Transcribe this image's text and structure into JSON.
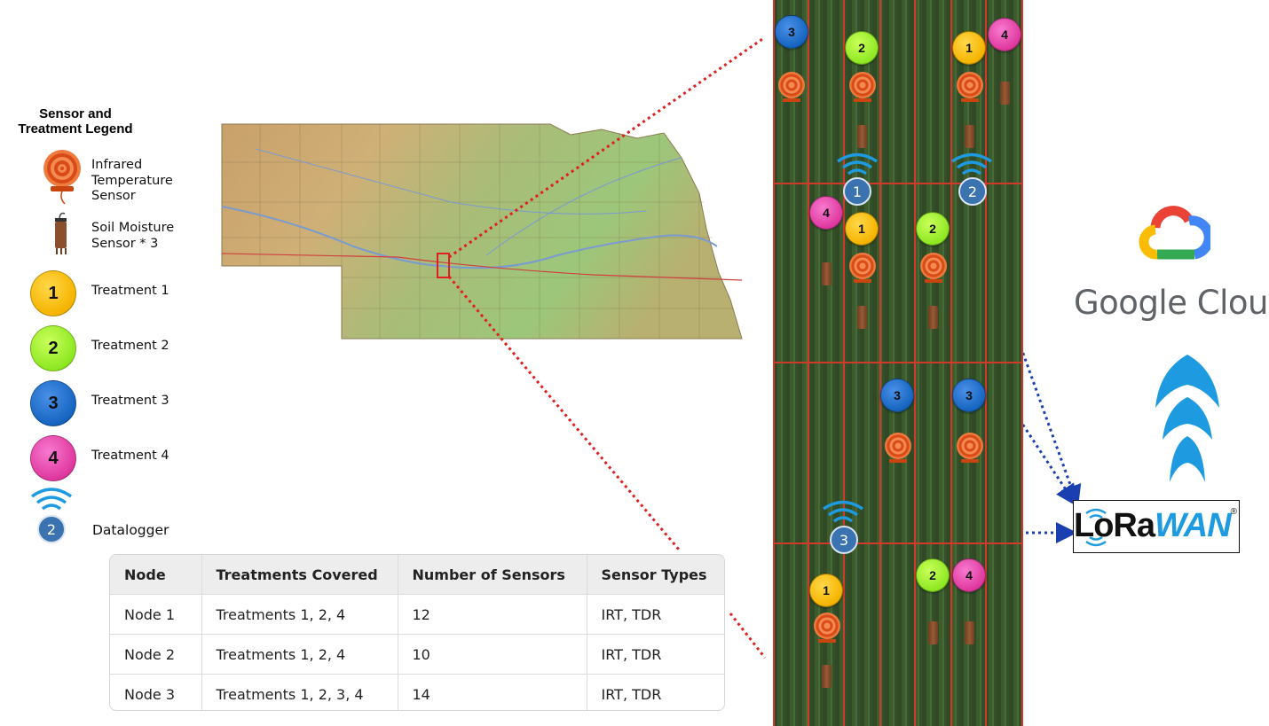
{
  "legend": {
    "title_line1": "Sensor and",
    "title_line2": "Treatment Legend",
    "irt_line1": "Infrared",
    "irt_line2": "Temperature",
    "irt_line3": "Sensor",
    "soil_line1": "Soil Moisture",
    "soil_line2": "Sensor * 3",
    "treatments": [
      {
        "number": "1",
        "label": "Treatment 1",
        "color": "#f5b400"
      },
      {
        "number": "2",
        "label": "Treatment 2",
        "color": "#8ee822"
      },
      {
        "number": "3",
        "label": "Treatment 3",
        "color": "#1565c0"
      },
      {
        "number": "4",
        "label": "Treatment 4",
        "color": "#e0389e"
      }
    ],
    "datalogger_number": "2",
    "datalogger_label": "Datalogger"
  },
  "table": {
    "headers": [
      "Node",
      "Treatments Covered",
      "Number of Sensors",
      "Sensor Types"
    ],
    "rows": [
      [
        "Node 1",
        "Treatments 1, 2, 4",
        "12",
        "IRT, TDR"
      ],
      [
        "Node 2",
        "Treatments 1, 2, 4",
        "10",
        "IRT, TDR"
      ],
      [
        "Node 3",
        "Treatments 1, 2, 3, 4",
        "14",
        "IRT, TDR"
      ]
    ]
  },
  "field": {
    "badges": [
      "3",
      "2",
      "1",
      "4",
      "4",
      "1",
      "2",
      "3",
      "3",
      "1",
      "2",
      "4"
    ],
    "dataloggers": [
      "1",
      "2",
      "3"
    ]
  },
  "cloud": {
    "google_cloud_label": "Google Cloud",
    "lorawan_lora": "LoRa",
    "lorawan_wan": "WAN",
    "lorawan_mark": "®"
  },
  "colors": {
    "connection_line": "#1a3fb0",
    "zoom_line": "#e02020",
    "lorawan_blue": "#1e9be0",
    "field_grid": "#d03a2a"
  }
}
